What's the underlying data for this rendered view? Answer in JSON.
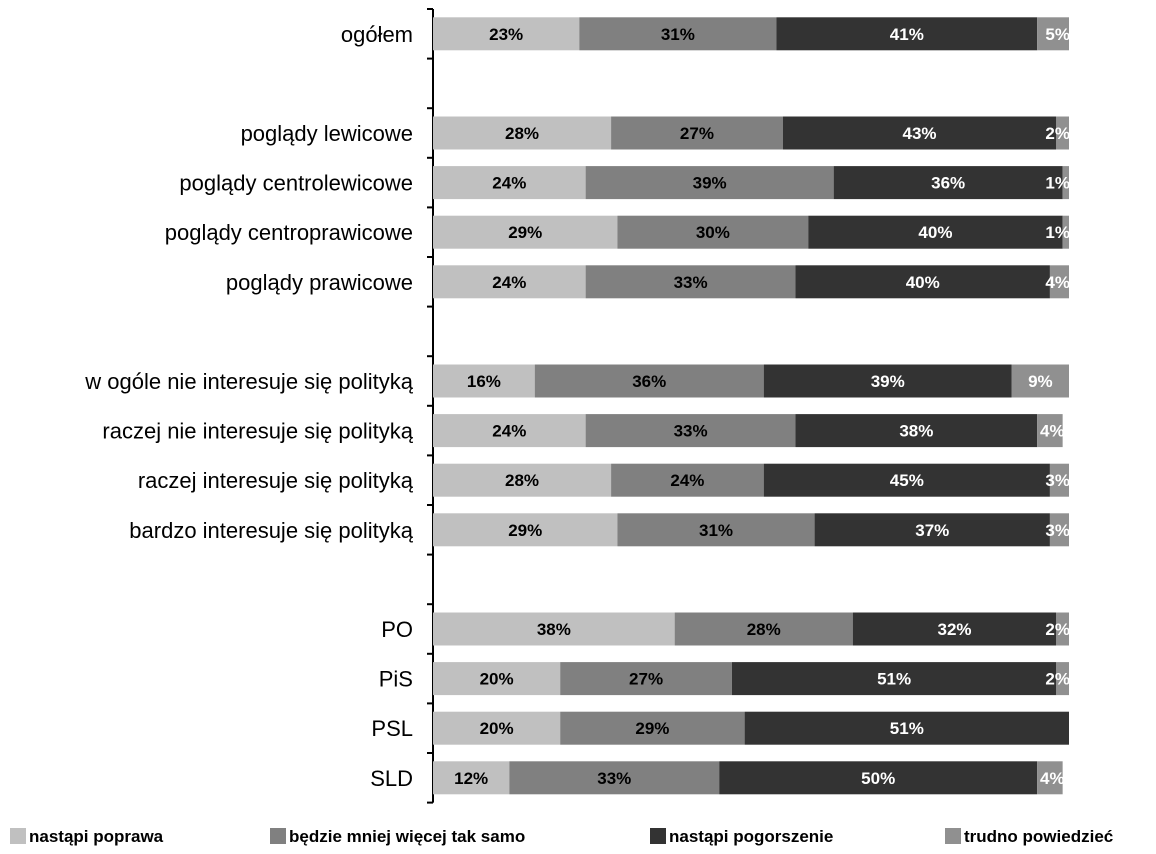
{
  "chart_data": {
    "type": "bar",
    "orientation": "horizontal",
    "stacked": true,
    "percent": true,
    "xlim": [
      0,
      100
    ],
    "grid": false,
    "legend_position": "bottom",
    "categories": [
      "ogółem",
      "",
      "poglądy lewicowe",
      "poglądy centrolewicowe",
      "poglądy centroprawicowe",
      "poglądy prawicowe",
      "",
      "w ogóle nie interesuje się polityką",
      "raczej nie interesuje się polityką",
      "raczej interesuje się polityką",
      "bardzo interesuje się polityką",
      "",
      "PO",
      "PiS",
      "PSL",
      "SLD"
    ],
    "series": [
      {
        "name": "nastąpi poprawa",
        "color": "#c0c0c0",
        "label_color": "#000000",
        "values": [
          23,
          null,
          28,
          24,
          29,
          24,
          null,
          16,
          24,
          28,
          29,
          null,
          38,
          20,
          20,
          12
        ]
      },
      {
        "name": "będzie mniej więcej tak samo",
        "color": "#808080",
        "label_color": "#000000",
        "values": [
          31,
          null,
          27,
          39,
          30,
          33,
          null,
          36,
          33,
          24,
          31,
          null,
          28,
          27,
          29,
          33
        ]
      },
      {
        "name": "nastąpi pogorszenie",
        "color": "#333333",
        "label_color": "#ffffff",
        "values": [
          41,
          null,
          43,
          36,
          40,
          40,
          null,
          39,
          38,
          45,
          37,
          null,
          32,
          51,
          51,
          50
        ]
      },
      {
        "name": "trudno powiedzieć",
        "color": "#909090",
        "label_color": "#ffffff",
        "values": [
          5,
          null,
          2,
          1,
          1,
          4,
          null,
          9,
          4,
          3,
          3,
          null,
          2,
          2,
          0,
          4
        ]
      }
    ]
  }
}
